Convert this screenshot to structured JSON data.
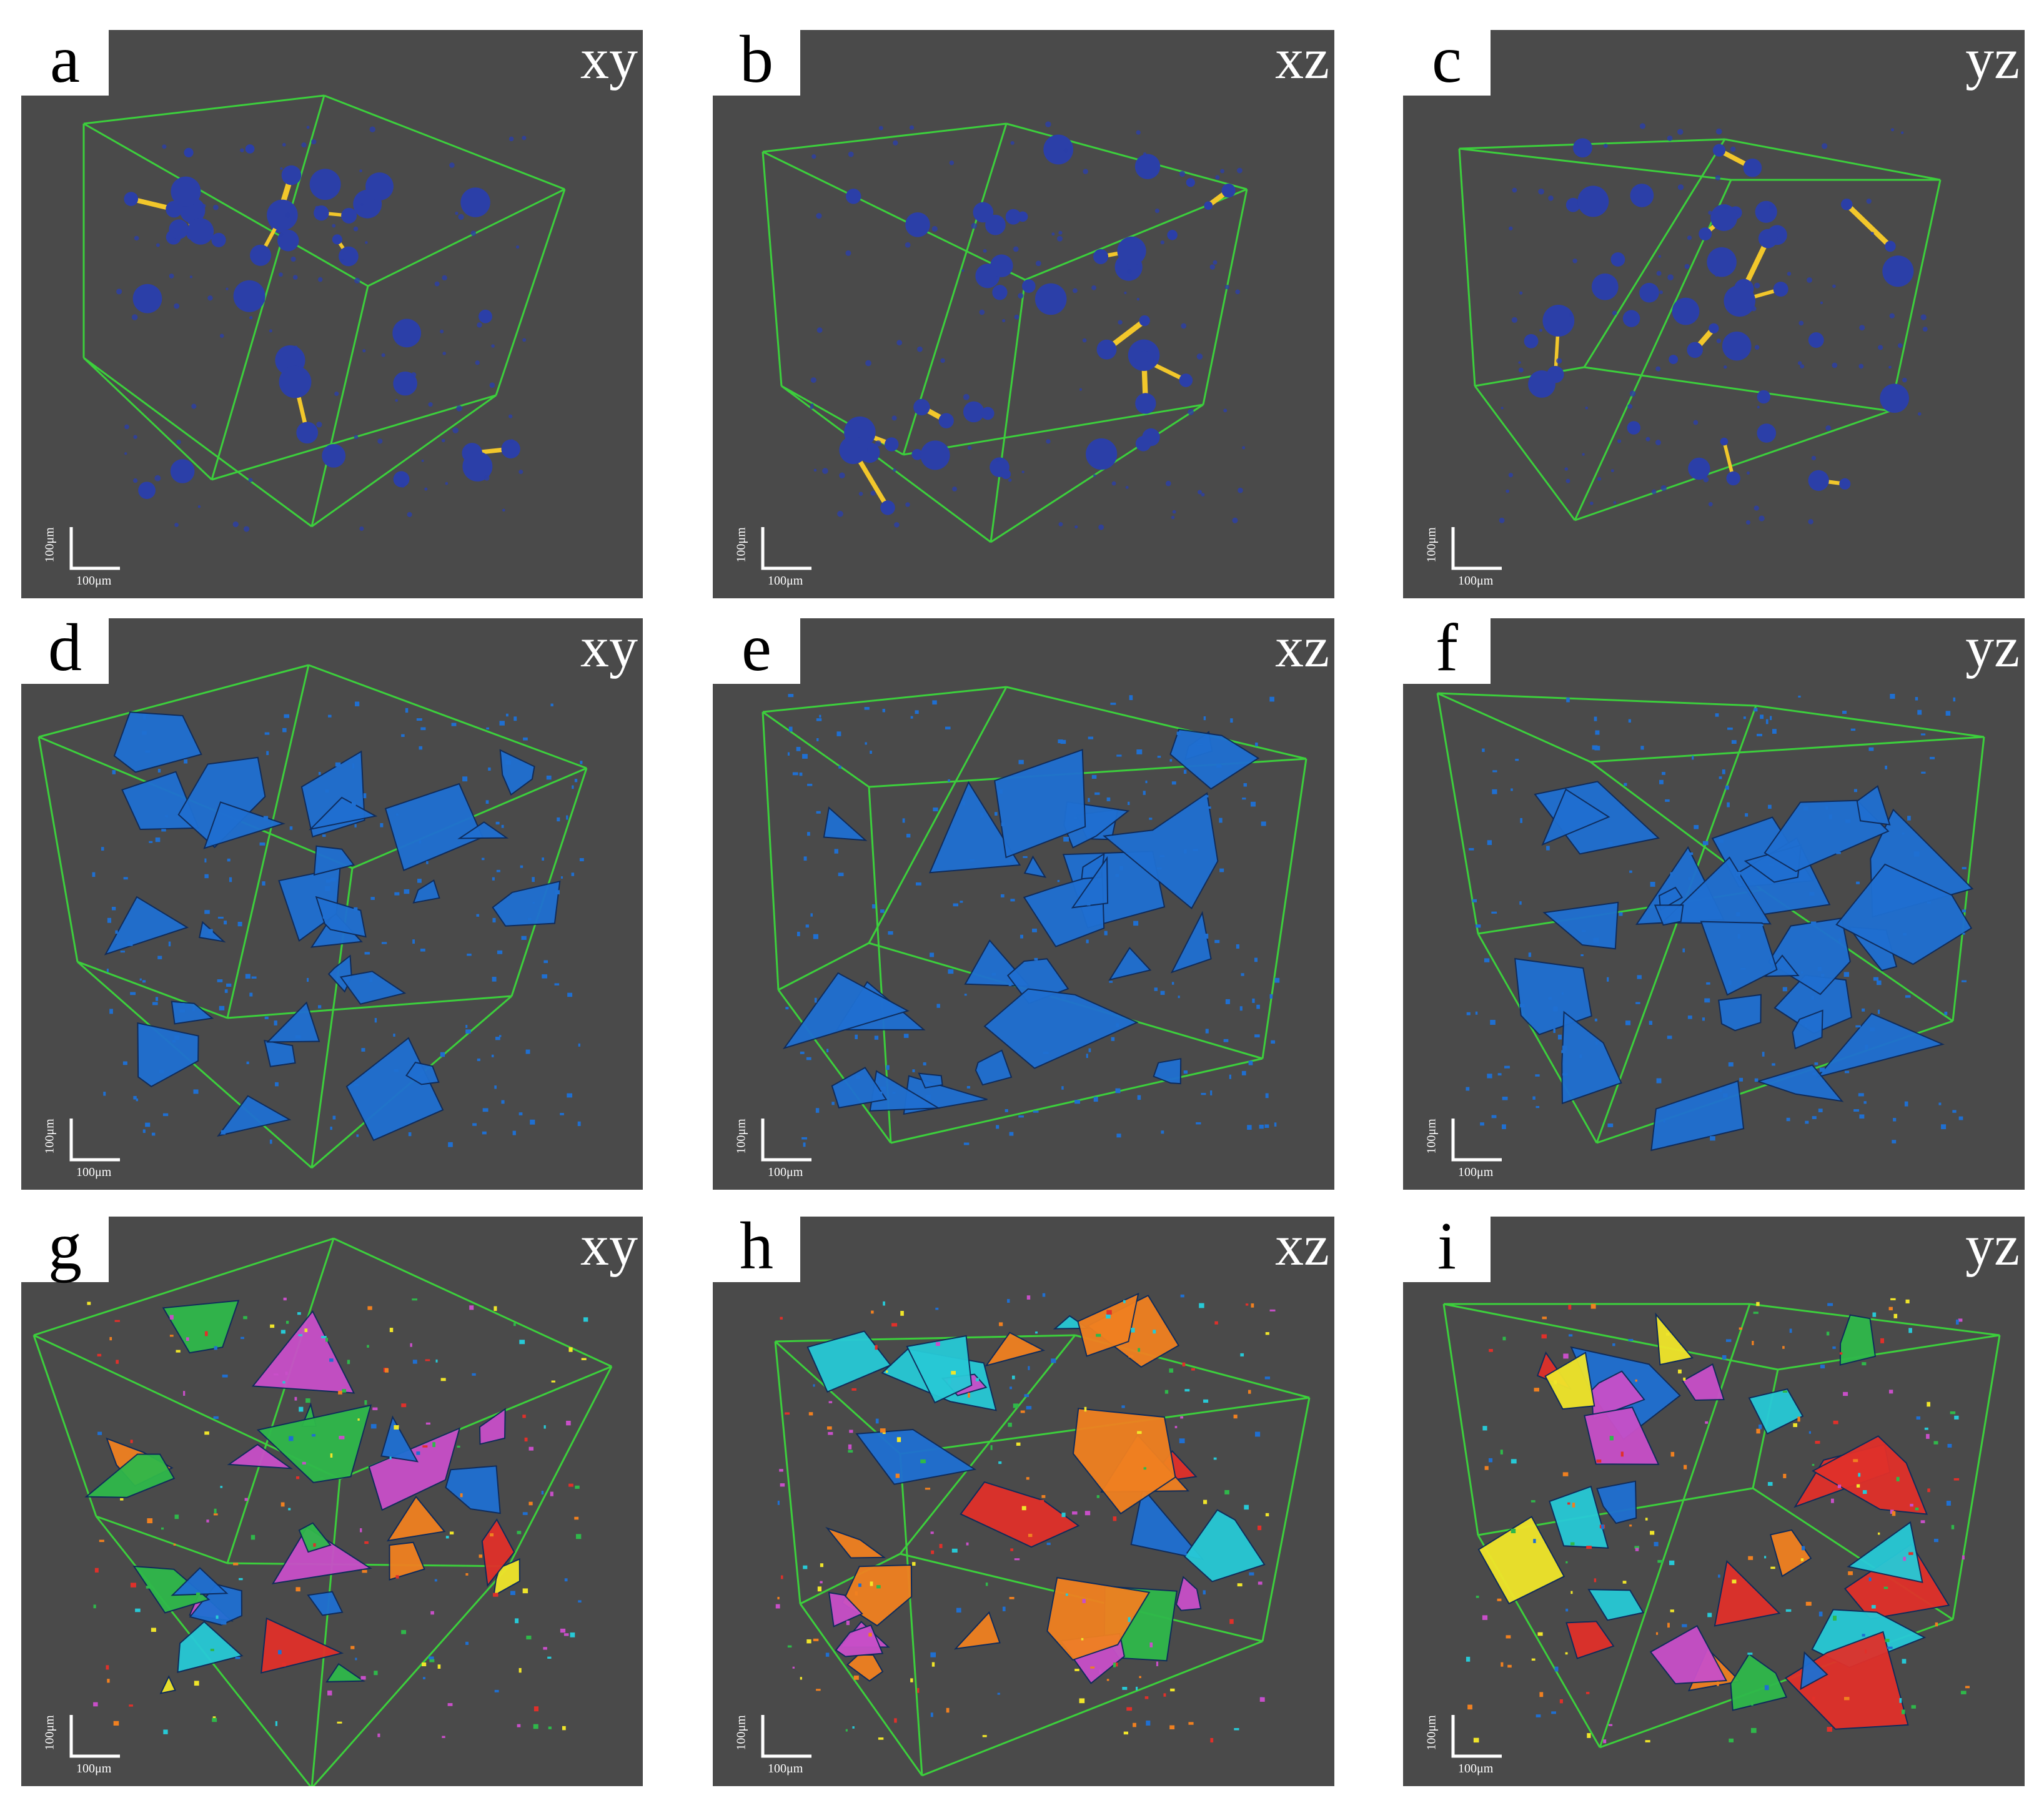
{
  "colors": {
    "panel_background": "#4a4a4a",
    "box_edges": "#3ccf3c",
    "pore_spheres": "#2b3fa8",
    "throats": "#f2c72b",
    "fractures": "#1f6fd1",
    "label_palette": [
      "#f0e52a",
      "#c84fc8",
      "#27c9d6",
      "#e0302a",
      "#1f6fd1",
      "#2fb84a",
      "#f08020"
    ]
  },
  "scale": {
    "x_label": "100μm",
    "y_label": "100μm"
  },
  "panels": [
    {
      "letter": "a",
      "view": "xy",
      "rendering": "pore-network-balls-and-sticks"
    },
    {
      "letter": "b",
      "view": "xz",
      "rendering": "pore-network-balls-and-sticks"
    },
    {
      "letter": "c",
      "view": "yz",
      "rendering": "pore-network-balls-and-sticks"
    },
    {
      "letter": "d",
      "view": "xy",
      "rendering": "fracture-surfaces-blue"
    },
    {
      "letter": "e",
      "view": "xz",
      "rendering": "fracture-surfaces-blue"
    },
    {
      "letter": "f",
      "view": "yz",
      "rendering": "fracture-surfaces-blue"
    },
    {
      "letter": "g",
      "view": "xy",
      "rendering": "fracture-surfaces-labelled"
    },
    {
      "letter": "h",
      "view": "xz",
      "rendering": "fracture-surfaces-labelled"
    },
    {
      "letter": "i",
      "view": "yz",
      "rendering": "fracture-surfaces-labelled"
    }
  ]
}
